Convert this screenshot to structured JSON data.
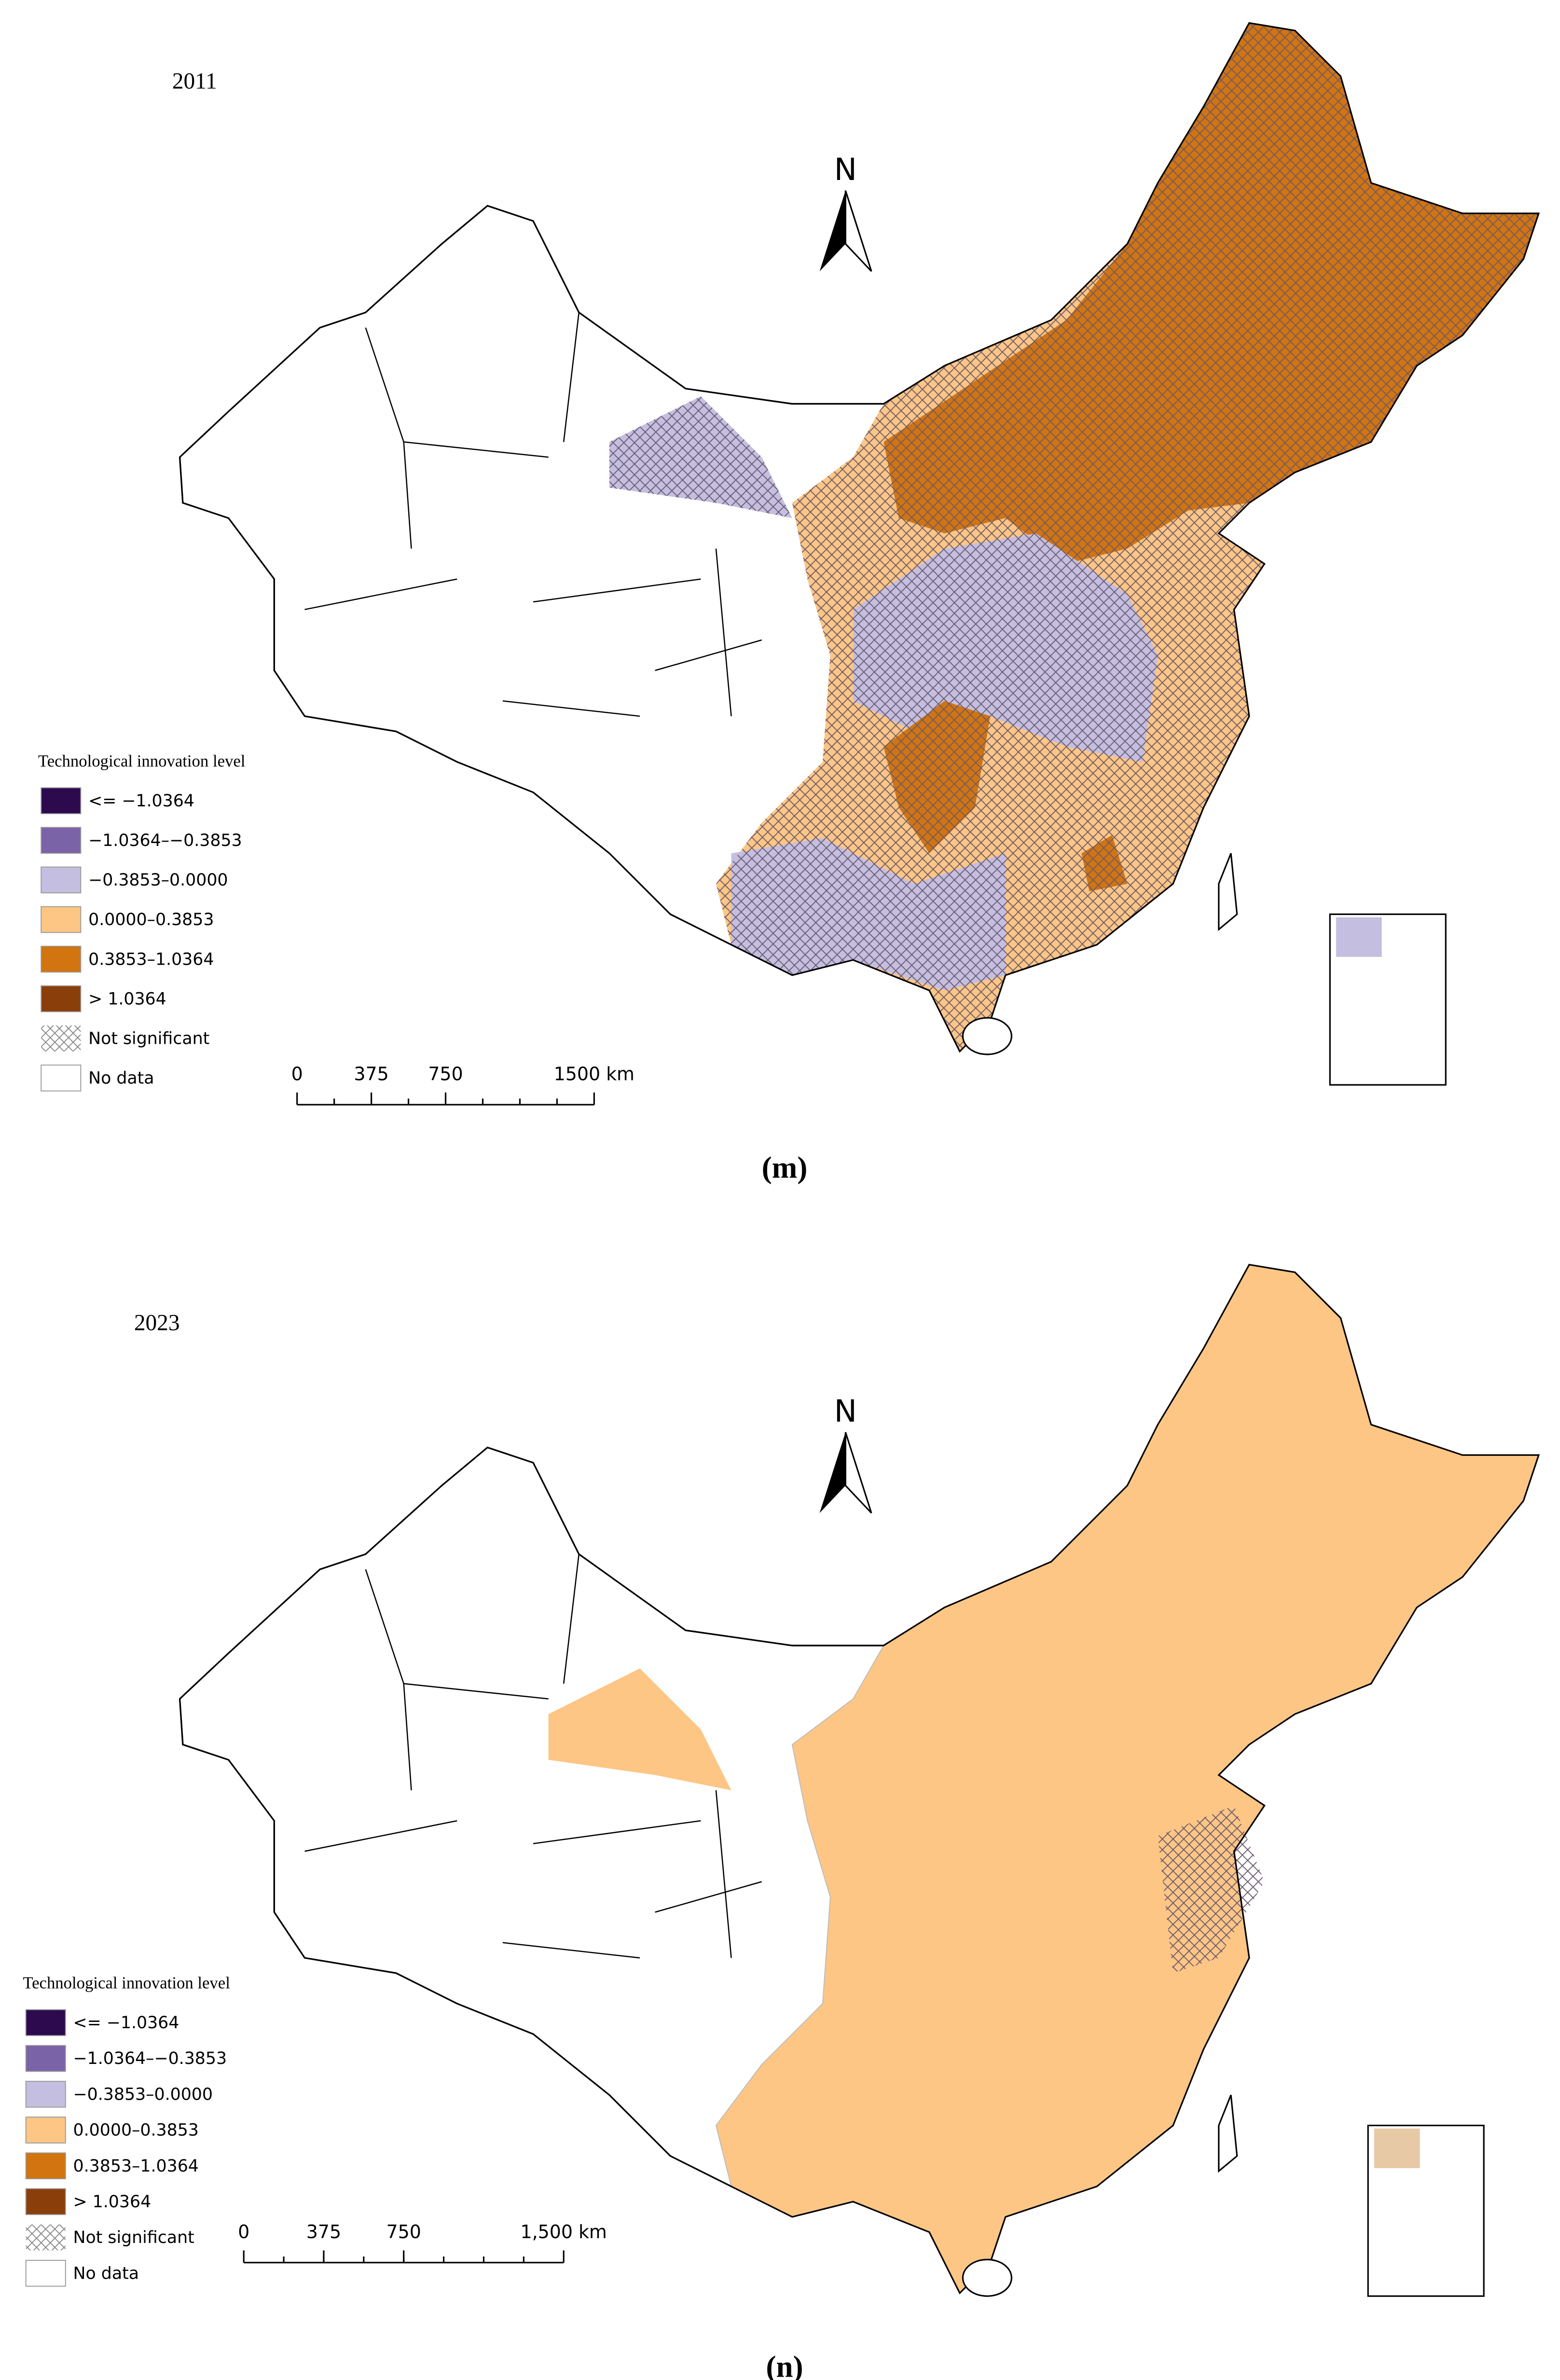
{
  "north_label": "N",
  "panels": [
    {
      "year": "2011",
      "legend": {
        "title": "Technological innovation level",
        "items": [
          {
            "label": "<= −1.0364",
            "color": "#2d0a4e"
          },
          {
            "label": "−1.0364–−0.3853",
            "color": "#7b63a8"
          },
          {
            "label": "−0.3853–0.0000",
            "color": "#c4bfe0"
          },
          {
            "label": "0.0000–0.3853",
            "color": "#fdc685"
          },
          {
            "label": "0.3853–1.0364",
            "color": "#d2740f"
          },
          {
            "label": "> 1.0364",
            "color": "#8a3f0a"
          },
          {
            "label": "Not significant",
            "pattern": "crosshatch"
          },
          {
            "label": "No data",
            "color": "#ffffff"
          }
        ]
      },
      "scale_labels": [
        "0",
        "375",
        "750",
        "1500 km"
      ],
      "caption": "(m)"
    },
    {
      "year": "2023",
      "legend": {
        "title": "Technological innovation level",
        "items": [
          {
            "label": "<= −1.0364",
            "color": "#2d0a4e"
          },
          {
            "label": "−1.0364–−0.3853",
            "color": "#7b63a8"
          },
          {
            "label": "−0.3853–0.0000",
            "color": "#c4bfe0"
          },
          {
            "label": "0.0000–0.3853",
            "color": "#fdc685"
          },
          {
            "label": "0.3853–1.0364",
            "color": "#d2740f"
          },
          {
            "label": "> 1.0364",
            "color": "#8a3f0a"
          },
          {
            "label": "Not significant",
            "pattern": "crosshatch"
          },
          {
            "label": "No data",
            "color": "#ffffff"
          }
        ]
      },
      "scale_labels": [
        "0",
        "375",
        "750",
        "1,500 km"
      ],
      "caption": "(n)"
    }
  ]
}
